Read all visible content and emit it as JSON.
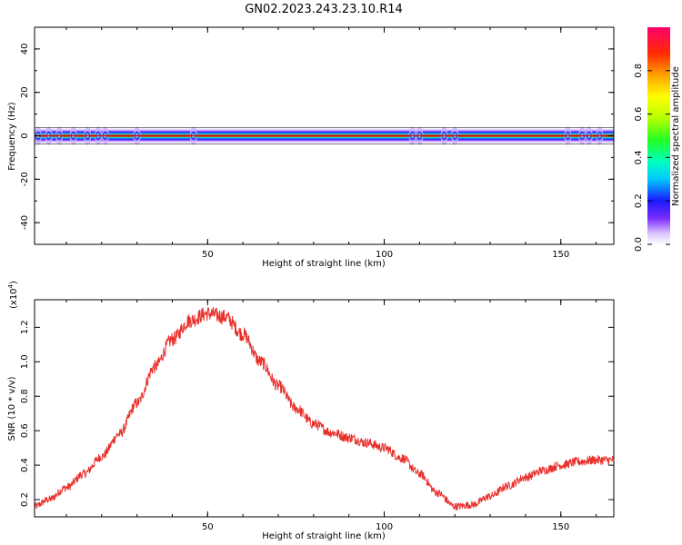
{
  "title": "GN02.2023.243.23.10.R14",
  "chart_data": [
    {
      "type": "heatmap",
      "xlabel": "Height of straight line (km)",
      "ylabel": "Frequency (Hz)",
      "xlim": [
        1,
        165
      ],
      "ylim": [
        -50,
        50
      ],
      "x_ticks": [
        50,
        100,
        150
      ],
      "y_ticks": [
        -40,
        -20,
        0,
        20,
        40
      ],
      "band_center_hz": 0,
      "colorbar": {
        "label": "Normalized spectral amplitude",
        "range": [
          0.0,
          1.0
        ],
        "ticks": [
          0.0,
          0.2,
          0.4,
          0.6,
          0.8
        ]
      },
      "grid": false
    },
    {
      "type": "line",
      "xlabel": "Height of straight line (km)",
      "ylabel": "SNR (10 * v/v)",
      "y_multiplier": "(x10",
      "y_multiplier_exp": "4",
      "y_multiplier_close": ")",
      "xlim": [
        1,
        165
      ],
      "ylim": [
        0.1,
        1.36
      ],
      "x_ticks": [
        50,
        100,
        150
      ],
      "y_ticks": [
        0.2,
        0.4,
        0.6,
        0.8,
        1.0,
        1.2
      ],
      "color": "#e8302c",
      "series": [
        {
          "x": [
            1,
            5,
            10,
            15,
            20,
            25,
            30,
            35,
            40,
            45,
            50,
            55,
            60,
            65,
            70,
            75,
            80,
            85,
            90,
            95,
            100,
            105,
            110,
            115,
            120,
            125,
            130,
            135,
            140,
            145,
            150,
            155,
            160,
            165
          ],
          "values": [
            0.16,
            0.2,
            0.27,
            0.35,
            0.45,
            0.58,
            0.76,
            0.97,
            1.13,
            1.24,
            1.28,
            1.26,
            1.16,
            1.0,
            0.86,
            0.73,
            0.64,
            0.59,
            0.56,
            0.53,
            0.5,
            0.44,
            0.35,
            0.24,
            0.16,
            0.17,
            0.22,
            0.28,
            0.33,
            0.37,
            0.4,
            0.42,
            0.43,
            0.43
          ]
        }
      ]
    }
  ]
}
